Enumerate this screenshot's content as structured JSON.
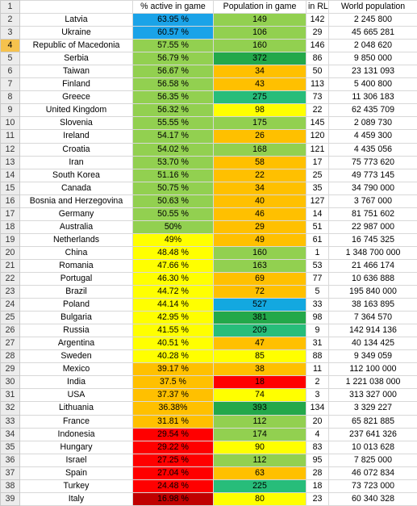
{
  "header": {
    "row_number": "1",
    "country": "",
    "pct_active": "% active  in game",
    "population_game": "Population in game",
    "in_rl": "in RL",
    "world_population": "World population"
  },
  "selected_row": "4",
  "colors": {
    "light_blue": "#1aa3e8",
    "blue_pop": "#13a8e0",
    "light_green": "#92d050",
    "green_dark": "#23a84a",
    "green_mid": "#27bd7a",
    "teal": "#1cc9a2",
    "yellow": "#ffff00",
    "orange": "#ffc000",
    "orange_dark": "#f29a00",
    "red": "#ff0000",
    "dark_red": "#c00000"
  },
  "rows": [
    {
      "n": "2",
      "country": "Latvia",
      "pct": "63.95 %",
      "pct_color": "#1aa3e8",
      "pop": "149",
      "pop_color": "#92d050",
      "rl": "142",
      "world": "2 245 800"
    },
    {
      "n": "3",
      "country": "Ukraine",
      "pct": "60.57 %",
      "pct_color": "#1aa3e8",
      "pop": "106",
      "pop_color": "#92d050",
      "rl": "29",
      "world": "45 665 281"
    },
    {
      "n": "4",
      "country": "Republic of Macedonia",
      "pct": "57.55 %",
      "pct_color": "#92d050",
      "pop": "160",
      "pop_color": "#92d050",
      "rl": "146",
      "world": "2 048 620"
    },
    {
      "n": "5",
      "country": "Serbia",
      "pct": "56.79 %",
      "pct_color": "#92d050",
      "pop": "372",
      "pop_color": "#23a84a",
      "rl": "86",
      "world": "9 850 000"
    },
    {
      "n": "6",
      "country": "Taiwan",
      "pct": "56.67 %",
      "pct_color": "#92d050",
      "pop": "34",
      "pop_color": "#ffc000",
      "rl": "50",
      "world": "23 131 093"
    },
    {
      "n": "7",
      "country": "Finland",
      "pct": "56.58 %",
      "pct_color": "#92d050",
      "pop": "43",
      "pop_color": "#ffc000",
      "rl": "113",
      "world": "5 400 800"
    },
    {
      "n": "8",
      "country": "Greece",
      "pct": "56.35 %",
      "pct_color": "#92d050",
      "pop": "275",
      "pop_color": "#27bd7a",
      "rl": "73",
      "world": "11 306 183"
    },
    {
      "n": "9",
      "country": "United Kingdom",
      "pct": "56.32 %",
      "pct_color": "#92d050",
      "pop": "98",
      "pop_color": "#ffff00",
      "rl": "22",
      "world": "62 435 709"
    },
    {
      "n": "10",
      "country": "Slovenia",
      "pct": "55.55 %",
      "pct_color": "#92d050",
      "pop": "175",
      "pop_color": "#92d050",
      "rl": "145",
      "world": "2 089 730"
    },
    {
      "n": "11",
      "country": "Ireland",
      "pct": "54.17 %",
      "pct_color": "#92d050",
      "pop": "26",
      "pop_color": "#ffc000",
      "rl": "120",
      "world": "4 459 300"
    },
    {
      "n": "12",
      "country": "Croatia",
      "pct": "54.02 %",
      "pct_color": "#92d050",
      "pop": "168",
      "pop_color": "#92d050",
      "rl": "121",
      "world": "4 435 056"
    },
    {
      "n": "13",
      "country": "Iran",
      "pct": "53.70 %",
      "pct_color": "#92d050",
      "pop": "58",
      "pop_color": "#ffc000",
      "rl": "17",
      "world": "75 773 620"
    },
    {
      "n": "14",
      "country": "South Korea",
      "pct": "51.16 %",
      "pct_color": "#92d050",
      "pop": "22",
      "pop_color": "#ffc000",
      "rl": "25",
      "world": "49 773 145"
    },
    {
      "n": "15",
      "country": "Canada",
      "pct": "50.75 %",
      "pct_color": "#92d050",
      "pop": "34",
      "pop_color": "#ffc000",
      "rl": "35",
      "world": "34 790 000"
    },
    {
      "n": "16",
      "country": "Bosnia and Herzegovina",
      "pct": "50.63 %",
      "pct_color": "#92d050",
      "pop": "40",
      "pop_color": "#ffc000",
      "rl": "127",
      "world": "3 767 000"
    },
    {
      "n": "17",
      "country": "Germany",
      "pct": "50.55 %",
      "pct_color": "#92d050",
      "pop": "46",
      "pop_color": "#ffc000",
      "rl": "14",
      "world": "81 751 602"
    },
    {
      "n": "18",
      "country": "Australia",
      "pct": "50%",
      "pct_color": "#92d050",
      "pop": "29",
      "pop_color": "#ffc000",
      "rl": "51",
      "world": "22 987 000"
    },
    {
      "n": "19",
      "country": "Netherlands",
      "pct": "49%",
      "pct_color": "#ffff00",
      "pop": "49",
      "pop_color": "#ffc000",
      "rl": "61",
      "world": "16 745 325"
    },
    {
      "n": "20",
      "country": "China",
      "pct": "48.48 %",
      "pct_color": "#ffff00",
      "pop": "160",
      "pop_color": "#92d050",
      "rl": "1",
      "world": "1 348 700 000"
    },
    {
      "n": "21",
      "country": "Romania",
      "pct": "47.66 %",
      "pct_color": "#ffff00",
      "pop": "163",
      "pop_color": "#92d050",
      "rl": "53",
      "world": "21 466 174"
    },
    {
      "n": "22",
      "country": "Portugal",
      "pct": "46.30 %",
      "pct_color": "#ffff00",
      "pop": "69",
      "pop_color": "#ffc000",
      "rl": "77",
      "world": "10 636 888"
    },
    {
      "n": "23",
      "country": "Brazil",
      "pct": "44.72 %",
      "pct_color": "#ffff00",
      "pop": "72",
      "pop_color": "#ffc000",
      "rl": "5",
      "world": "195 840 000"
    },
    {
      "n": "24",
      "country": "Poland",
      "pct": "44.14 %",
      "pct_color": "#ffff00",
      "pop": "527",
      "pop_color": "#13a8e0",
      "rl": "33",
      "world": "38 163 895"
    },
    {
      "n": "25",
      "country": "Bulgaria",
      "pct": "42.95 %",
      "pct_color": "#ffff00",
      "pop": "381",
      "pop_color": "#23a84a",
      "rl": "98",
      "world": "7 364 570"
    },
    {
      "n": "26",
      "country": "Russia",
      "pct": "41.55 %",
      "pct_color": "#ffff00",
      "pop": "209",
      "pop_color": "#27bd7a",
      "rl": "9",
      "world": "142 914 136"
    },
    {
      "n": "27",
      "country": "Argentina",
      "pct": "40.51 %",
      "pct_color": "#ffff00",
      "pop": "47",
      "pop_color": "#ffc000",
      "rl": "31",
      "world": "40 134 425"
    },
    {
      "n": "28",
      "country": "Sweden",
      "pct": "40.28 %",
      "pct_color": "#ffff00",
      "pop": "85",
      "pop_color": "#ffff00",
      "rl": "88",
      "world": "9 349 059"
    },
    {
      "n": "29",
      "country": "Mexico",
      "pct": "39.17 %",
      "pct_color": "#ffc000",
      "pop": "38",
      "pop_color": "#ffc000",
      "rl": "11",
      "world": "112 100 000"
    },
    {
      "n": "30",
      "country": "India",
      "pct": "37.5 %",
      "pct_color": "#ffc000",
      "pop": "18",
      "pop_color": "#ff0000",
      "rl": "2",
      "world": "1 221 038 000"
    },
    {
      "n": "31",
      "country": "USA",
      "pct": "37.37 %",
      "pct_color": "#ffc000",
      "pop": "74",
      "pop_color": "#ffff00",
      "rl": "3",
      "world": "313 327 000"
    },
    {
      "n": "32",
      "country": "Lithuania",
      "pct": "36.38%",
      "pct_color": "#ffc000",
      "pop": "393",
      "pop_color": "#23a84a",
      "rl": "134",
      "world": "3 329 227"
    },
    {
      "n": "33",
      "country": "France",
      "pct": "31.81 %",
      "pct_color": "#ffc000",
      "pop": "112",
      "pop_color": "#92d050",
      "rl": "20",
      "world": "65 821 885"
    },
    {
      "n": "34",
      "country": "Indonesia",
      "pct": "29.54 %",
      "pct_color": "#ff0000",
      "pop": "174",
      "pop_color": "#92d050",
      "rl": "4",
      "world": "237 641 326"
    },
    {
      "n": "35",
      "country": "Hungary",
      "pct": "29.22 %",
      "pct_color": "#ff0000",
      "pop": "90",
      "pop_color": "#ffff00",
      "rl": "83",
      "world": "10 013 628"
    },
    {
      "n": "36",
      "country": "Israel",
      "pct": "27.25 %",
      "pct_color": "#ff0000",
      "pop": "112",
      "pop_color": "#92d050",
      "rl": "95",
      "world": "7 825 000"
    },
    {
      "n": "37",
      "country": "Spain",
      "pct": "27.04 %",
      "pct_color": "#ff0000",
      "pop": "63",
      "pop_color": "#ffc000",
      "rl": "28",
      "world": "46 072 834"
    },
    {
      "n": "38",
      "country": "Turkey",
      "pct": "24.48 %",
      "pct_color": "#ff0000",
      "pop": "225",
      "pop_color": "#27bd7a",
      "rl": "18",
      "world": "73 723 000"
    },
    {
      "n": "39",
      "country": "Italy",
      "pct": "16.98 %",
      "pct_color": "#c00000",
      "pop": "80",
      "pop_color": "#ffff00",
      "rl": "23",
      "world": "60 340 328"
    }
  ]
}
